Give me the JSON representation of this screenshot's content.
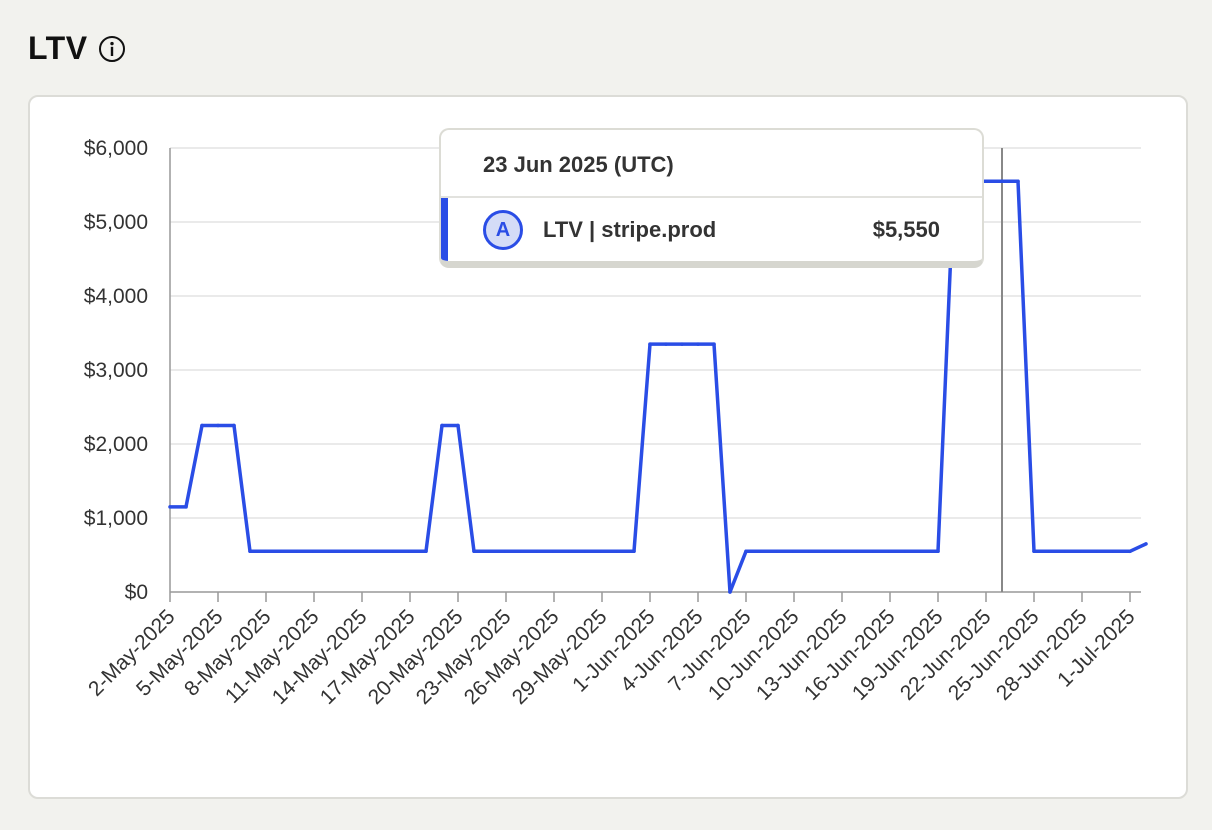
{
  "header": {
    "title": "LTV",
    "info_icon": "info-icon"
  },
  "tooltip": {
    "date": "23 Jun 2025 (UTC)",
    "badge": "A",
    "series": "LTV | stripe.prod",
    "value": "$5,550"
  },
  "colors": {
    "line": "#2a4de6",
    "grid": "#e4e4e4",
    "axis": "#999999",
    "crosshair": "#888888",
    "text": "#333333"
  },
  "chart_data": {
    "type": "line",
    "title": "LTV",
    "xlabel": "",
    "ylabel": "",
    "ylim": [
      0,
      6000
    ],
    "y_ticks": [
      0,
      1000,
      2000,
      3000,
      4000,
      5000,
      6000
    ],
    "y_tick_labels": [
      "$0",
      "$1,000",
      "$2,000",
      "$3,000",
      "$4,000",
      "$5,000",
      "$6,000"
    ],
    "x_tick_labels": [
      "2-May-2025",
      "5-May-2025",
      "8-May-2025",
      "11-May-2025",
      "14-May-2025",
      "17-May-2025",
      "20-May-2025",
      "23-May-2025",
      "26-May-2025",
      "29-May-2025",
      "1-Jun-2025",
      "4-Jun-2025",
      "7-Jun-2025",
      "10-Jun-2025",
      "13-Jun-2025",
      "16-Jun-2025",
      "19-Jun-2025",
      "22-Jun-2025",
      "25-Jun-2025",
      "28-Jun-2025",
      "1-Jul-2025"
    ],
    "grid": true,
    "legend": "none",
    "crosshair_date": "2025-06-23",
    "series": [
      {
        "name": "LTV | stripe.prod",
        "points": [
          [
            "2025-05-02",
            1150
          ],
          [
            "2025-05-03",
            1150
          ],
          [
            "2025-05-04",
            2250
          ],
          [
            "2025-05-05",
            2250
          ],
          [
            "2025-05-06",
            2250
          ],
          [
            "2025-05-07",
            550
          ],
          [
            "2025-05-08",
            550
          ],
          [
            "2025-05-09",
            550
          ],
          [
            "2025-05-10",
            550
          ],
          [
            "2025-05-11",
            550
          ],
          [
            "2025-05-12",
            550
          ],
          [
            "2025-05-13",
            550
          ],
          [
            "2025-05-14",
            550
          ],
          [
            "2025-05-15",
            550
          ],
          [
            "2025-05-16",
            550
          ],
          [
            "2025-05-17",
            550
          ],
          [
            "2025-05-18",
            550
          ],
          [
            "2025-05-19",
            2250
          ],
          [
            "2025-05-20",
            2250
          ],
          [
            "2025-05-21",
            550
          ],
          [
            "2025-05-22",
            550
          ],
          [
            "2025-05-23",
            550
          ],
          [
            "2025-05-24",
            550
          ],
          [
            "2025-05-25",
            550
          ],
          [
            "2025-05-26",
            550
          ],
          [
            "2025-05-27",
            550
          ],
          [
            "2025-05-28",
            550
          ],
          [
            "2025-05-29",
            550
          ],
          [
            "2025-05-30",
            550
          ],
          [
            "2025-05-31",
            550
          ],
          [
            "2025-06-01",
            3350
          ],
          [
            "2025-06-02",
            3350
          ],
          [
            "2025-06-03",
            3350
          ],
          [
            "2025-06-04",
            3350
          ],
          [
            "2025-06-05",
            3350
          ],
          [
            "2025-06-06",
            0
          ],
          [
            "2025-06-07",
            550
          ],
          [
            "2025-06-08",
            550
          ],
          [
            "2025-06-09",
            550
          ],
          [
            "2025-06-10",
            550
          ],
          [
            "2025-06-11",
            550
          ],
          [
            "2025-06-12",
            550
          ],
          [
            "2025-06-13",
            550
          ],
          [
            "2025-06-14",
            550
          ],
          [
            "2025-06-15",
            550
          ],
          [
            "2025-06-16",
            550
          ],
          [
            "2025-06-17",
            550
          ],
          [
            "2025-06-18",
            550
          ],
          [
            "2025-06-19",
            550
          ],
          [
            "2025-06-20",
            5550
          ],
          [
            "2025-06-21",
            5550
          ],
          [
            "2025-06-22",
            5550
          ],
          [
            "2025-06-23",
            5550
          ],
          [
            "2025-06-24",
            5550
          ],
          [
            "2025-06-25",
            550
          ],
          [
            "2025-06-26",
            550
          ],
          [
            "2025-06-27",
            550
          ],
          [
            "2025-06-28",
            550
          ],
          [
            "2025-06-29",
            550
          ],
          [
            "2025-06-30",
            550
          ],
          [
            "2025-07-01",
            550
          ],
          [
            "2025-07-02",
            650
          ]
        ]
      }
    ]
  }
}
